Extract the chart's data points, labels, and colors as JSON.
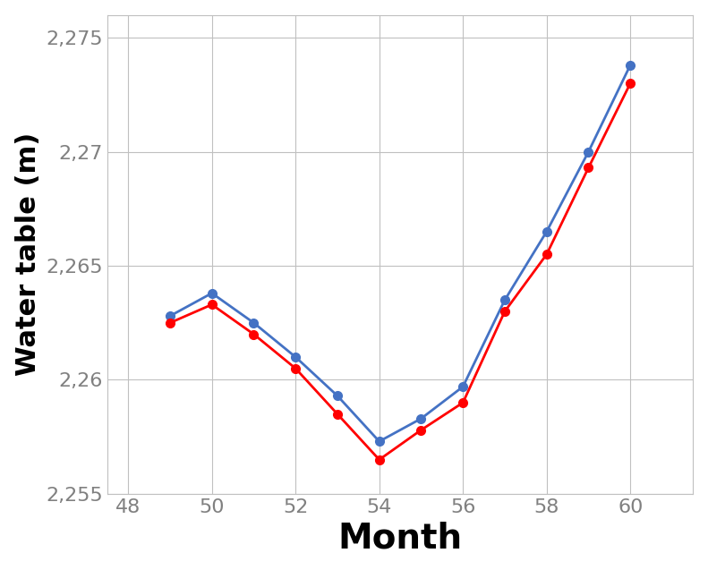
{
  "x": [
    49,
    50,
    51,
    52,
    53,
    54,
    55,
    56,
    57,
    58,
    59,
    60
  ],
  "blue_y": [
    2.2628,
    2.2638,
    2.2625,
    2.261,
    2.2593,
    2.2573,
    2.2583,
    2.2597,
    2.2635,
    2.2665,
    2.27,
    2.2738
  ],
  "red_y": [
    2.2625,
    2.2633,
    2.262,
    2.2605,
    2.2585,
    2.2565,
    2.2578,
    2.259,
    2.263,
    2.2655,
    2.2693,
    2.273
  ],
  "blue_color": "#4472C4",
  "red_color": "#FF0000",
  "xlabel": "Month",
  "ylabel": "Water table (m)",
  "xlim": [
    47.5,
    61.5
  ],
  "ylim": [
    2.255,
    2.276
  ],
  "xticks": [
    48,
    50,
    52,
    54,
    56,
    58,
    60
  ],
  "yticks": [
    2.255,
    2.26,
    2.265,
    2.27,
    2.275
  ],
  "ytick_labels": [
    "2,255",
    "2,26",
    "2,265",
    "2,27",
    "2,275"
  ],
  "xtick_labels": [
    "48",
    "50",
    "52",
    "54",
    "56",
    "58",
    "60"
  ],
  "grid_color": "#C0C0C0",
  "tick_label_color": "#808080",
  "marker_size": 7,
  "line_width": 2.0,
  "xlabel_fontsize": 28,
  "ylabel_fontsize": 22,
  "tick_fontsize": 16
}
